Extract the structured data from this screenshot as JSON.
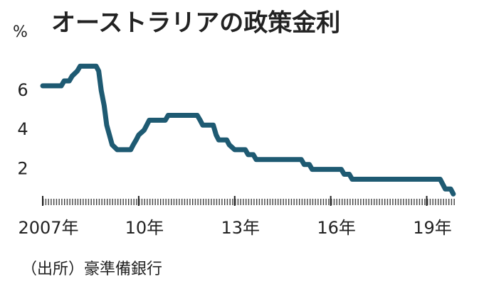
{
  "chart_data": {
    "type": "line",
    "title": "オーストラリアの政策金利",
    "y_label": "%",
    "source": "（出所）豪準備銀行",
    "x": [
      2007.0,
      2007.58,
      2007.67,
      2007.83,
      2007.92,
      2008.08,
      2008.17,
      2008.67,
      2008.75,
      2008.83,
      2008.92,
      2009.0,
      2009.17,
      2009.33,
      2009.75,
      2009.83,
      2009.92,
      2010.0,
      2010.17,
      2010.25,
      2010.33,
      2010.83,
      2010.92,
      2011.83,
      2011.92,
      2012.0,
      2012.33,
      2012.42,
      2012.5,
      2012.75,
      2012.83,
      2013.0,
      2013.33,
      2013.42,
      2013.58,
      2013.67,
      2015.08,
      2015.17,
      2015.33,
      2015.42,
      2016.33,
      2016.42,
      2016.58,
      2016.67,
      2019.42,
      2019.5,
      2019.58,
      2019.75,
      2019.83
    ],
    "series": [
      {
        "color": "#1e5a72",
        "values": [
          6.25,
          6.25,
          6.5,
          6.5,
          6.75,
          7.0,
          7.25,
          7.25,
          7.0,
          6.0,
          5.25,
          4.25,
          3.25,
          3.0,
          3.0,
          3.25,
          3.5,
          3.75,
          4.0,
          4.25,
          4.5,
          4.5,
          4.75,
          4.75,
          4.5,
          4.25,
          4.25,
          3.75,
          3.5,
          3.5,
          3.25,
          3.0,
          3.0,
          2.75,
          2.75,
          2.5,
          2.5,
          2.25,
          2.25,
          2.0,
          2.0,
          1.75,
          1.75,
          1.5,
          1.5,
          1.25,
          1.0,
          1.0,
          0.75
        ]
      }
    ],
    "xlim": [
      2007.0,
      2019.9
    ],
    "xticks": [
      {
        "value": 2007,
        "label": "2007年"
      },
      {
        "value": 2010,
        "label": "10年"
      },
      {
        "value": 2013,
        "label": "13年"
      },
      {
        "value": 2016,
        "label": "16年"
      },
      {
        "value": 2019,
        "label": "19年"
      }
    ],
    "ylim": [
      0,
      7.8
    ],
    "yticks": [
      2,
      4,
      6
    ]
  }
}
